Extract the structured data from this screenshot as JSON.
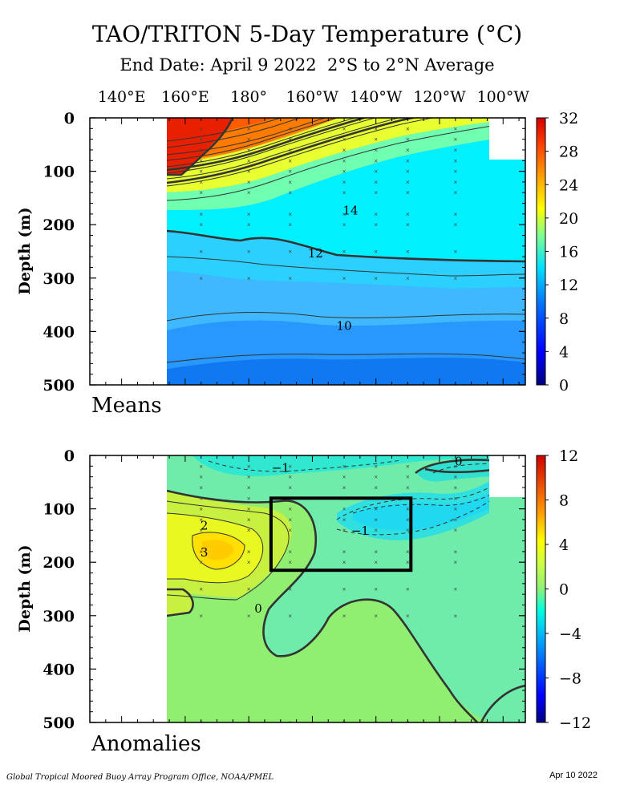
{
  "title": "TAO/TRITON 5-Day Temperature (°C)",
  "subtitle": "End Date: April 9 2022  2°S to 2°N Average",
  "footer_left": "Global Tropical Moored Buoy Array Program Office, NOAA/PMEL",
  "footer_right": "Apr 10 2022",
  "x_tick_labels": [
    "140°E",
    "160°E",
    "180°",
    "160°W",
    "140°W",
    "120°W",
    "100°W"
  ],
  "ylabel": "Depth (m)",
  "chart_data": [
    {
      "type": "heatmap",
      "panel": "Means",
      "x_ticks": [
        140,
        160,
        180,
        200,
        220,
        240,
        260
      ],
      "xlim": [
        130,
        267
      ],
      "ylim": [
        500,
        0
      ],
      "y_ticks": [
        0,
        100,
        200,
        300,
        400,
        500
      ],
      "no_data_regions": [
        {
          "lon": [
            130,
            160
          ],
          "depth": [
            0,
            500
          ]
        },
        {
          "lon": [
            254,
            267
          ],
          "depth": [
            0,
            80
          ]
        }
      ],
      "colorbar": {
        "min": 0,
        "max": 32,
        "ticks": [
          0,
          4,
          8,
          12,
          16,
          20,
          24,
          28,
          32
        ],
        "labels": [
          "0",
          "4",
          "8",
          "12",
          "16",
          "20",
          "24",
          "28",
          "32"
        ]
      },
      "contour_labels": [
        {
          "text": "14",
          "lon": 212,
          "depth": 172
        },
        {
          "text": "12",
          "lon": 201,
          "depth": 252
        },
        {
          "text": "10",
          "lon": 210,
          "depth": 388
        }
      ],
      "isotherm_depths": {
        "lon": [
          160,
          180,
          200,
          220,
          240,
          260,
          267
        ],
        "t28": [
          115,
          110,
          80,
          55,
          45,
          35,
          30
        ],
        "t20": [
          195,
          190,
          155,
          120,
          90,
          70,
          55
        ],
        "t14": [
          240,
          238,
          205,
          175,
          150,
          130,
          120
        ],
        "t12": [
          285,
          300,
          275,
          272,
          275,
          272,
          270
        ],
        "t10": [
          410,
          405,
          398,
          405,
          400,
          395,
          392
        ]
      },
      "sample_columns": [
        165,
        180,
        193,
        210,
        220,
        230,
        245
      ]
    },
    {
      "type": "heatmap",
      "panel": "Anomalies",
      "x_ticks": [
        140,
        160,
        180,
        200,
        220,
        240,
        260
      ],
      "xlim": [
        130,
        267
      ],
      "ylim": [
        500,
        0
      ],
      "y_ticks": [
        0,
        100,
        200,
        300,
        400,
        500
      ],
      "no_data_regions": [
        {
          "lon": [
            130,
            160
          ],
          "depth": [
            0,
            500
          ]
        },
        {
          "lon": [
            254,
            267
          ],
          "depth": [
            0,
            80
          ]
        }
      ],
      "colorbar": {
        "min": -12,
        "max": 12,
        "ticks": [
          -12,
          -8,
          -4,
          0,
          4,
          8,
          12
        ],
        "labels": [
          "−12",
          "−8",
          "−4",
          "0",
          "4",
          "8",
          "12"
        ]
      },
      "contour_labels": [
        {
          "text": "−1",
          "lon": 190,
          "depth": 22
        },
        {
          "text": "0",
          "lon": 246,
          "depth": 10
        },
        {
          "text": "2",
          "lon": 166,
          "depth": 130
        },
        {
          "text": "3",
          "lon": 166,
          "depth": 180
        },
        {
          "text": "−1",
          "lon": 215,
          "depth": 140
        },
        {
          "text": "0",
          "lon": 183,
          "depth": 285
        }
      ],
      "warm_core": {
        "lon": 167,
        "depth": 170,
        "value": 3
      },
      "highlight_box": {
        "lon": [
          187,
          231
        ],
        "depth": [
          80,
          215
        ]
      },
      "sample_columns": [
        165,
        180,
        193,
        210,
        220,
        230,
        245
      ]
    }
  ],
  "panel_labels": {
    "means": "Means",
    "anomalies": "Anomalies"
  },
  "colors": {
    "frame": "#000000",
    "nodata": "#ffffff"
  }
}
